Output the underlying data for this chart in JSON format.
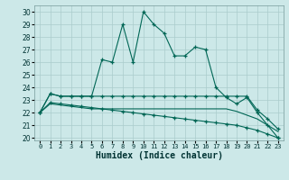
{
  "xlabel": "Humidex (Indice chaleur)",
  "background_color": "#cce8e8",
  "grid_color": "#aacccc",
  "line_color": "#006655",
  "xlim": [
    -0.5,
    23.5
  ],
  "ylim": [
    19.8,
    30.5
  ],
  "yticks": [
    20,
    21,
    22,
    23,
    24,
    25,
    26,
    27,
    28,
    29,
    30
  ],
  "xticks": [
    0,
    1,
    2,
    3,
    4,
    5,
    6,
    7,
    8,
    9,
    10,
    11,
    12,
    13,
    14,
    15,
    16,
    17,
    18,
    19,
    20,
    21,
    22,
    23
  ],
  "series1_x": [
    0,
    1,
    2,
    3,
    4,
    5,
    6,
    7,
    8,
    9,
    10,
    11,
    12,
    13,
    14,
    15,
    16,
    17,
    18,
    19,
    20,
    21,
    22,
    23
  ],
  "series1_y": [
    22.0,
    23.5,
    23.3,
    23.3,
    23.3,
    23.3,
    26.2,
    26.0,
    29.0,
    26.0,
    30.0,
    29.0,
    28.3,
    26.5,
    26.5,
    27.2,
    27.0,
    24.0,
    23.2,
    22.7,
    23.2,
    22.0,
    21.0,
    20.0
  ],
  "series2_x": [
    0,
    1,
    2,
    3,
    4,
    5,
    6,
    7,
    8,
    9,
    10,
    11,
    12,
    13,
    14,
    15,
    16,
    17,
    18,
    19,
    20,
    21,
    22,
    23
  ],
  "series2_y": [
    22.0,
    23.5,
    23.3,
    23.3,
    23.3,
    23.3,
    23.3,
    23.3,
    23.3,
    23.3,
    23.3,
    23.3,
    23.3,
    23.3,
    23.3,
    23.3,
    23.3,
    23.3,
    23.3,
    23.3,
    23.3,
    22.2,
    21.5,
    20.7
  ],
  "series3_x": [
    0,
    1,
    2,
    3,
    4,
    5,
    6,
    7,
    8,
    9,
    10,
    11,
    12,
    13,
    14,
    15,
    16,
    17,
    18,
    19,
    20,
    21,
    22,
    23
  ],
  "series3_y": [
    22.0,
    22.8,
    22.7,
    22.6,
    22.5,
    22.4,
    22.3,
    22.2,
    22.1,
    22.0,
    21.9,
    21.8,
    21.7,
    21.6,
    21.5,
    21.4,
    21.3,
    21.2,
    21.1,
    21.0,
    20.8,
    20.6,
    20.3,
    20.0
  ],
  "series4_x": [
    0,
    1,
    2,
    3,
    4,
    5,
    6,
    7,
    8,
    9,
    10,
    11,
    12,
    13,
    14,
    15,
    16,
    17,
    18,
    19,
    20,
    21,
    22,
    23
  ],
  "series4_y": [
    22.0,
    22.7,
    22.6,
    22.5,
    22.4,
    22.3,
    22.3,
    22.3,
    22.3,
    22.3,
    22.3,
    22.3,
    22.3,
    22.3,
    22.3,
    22.3,
    22.3,
    22.3,
    22.3,
    22.1,
    21.8,
    21.5,
    21.0,
    20.5
  ]
}
